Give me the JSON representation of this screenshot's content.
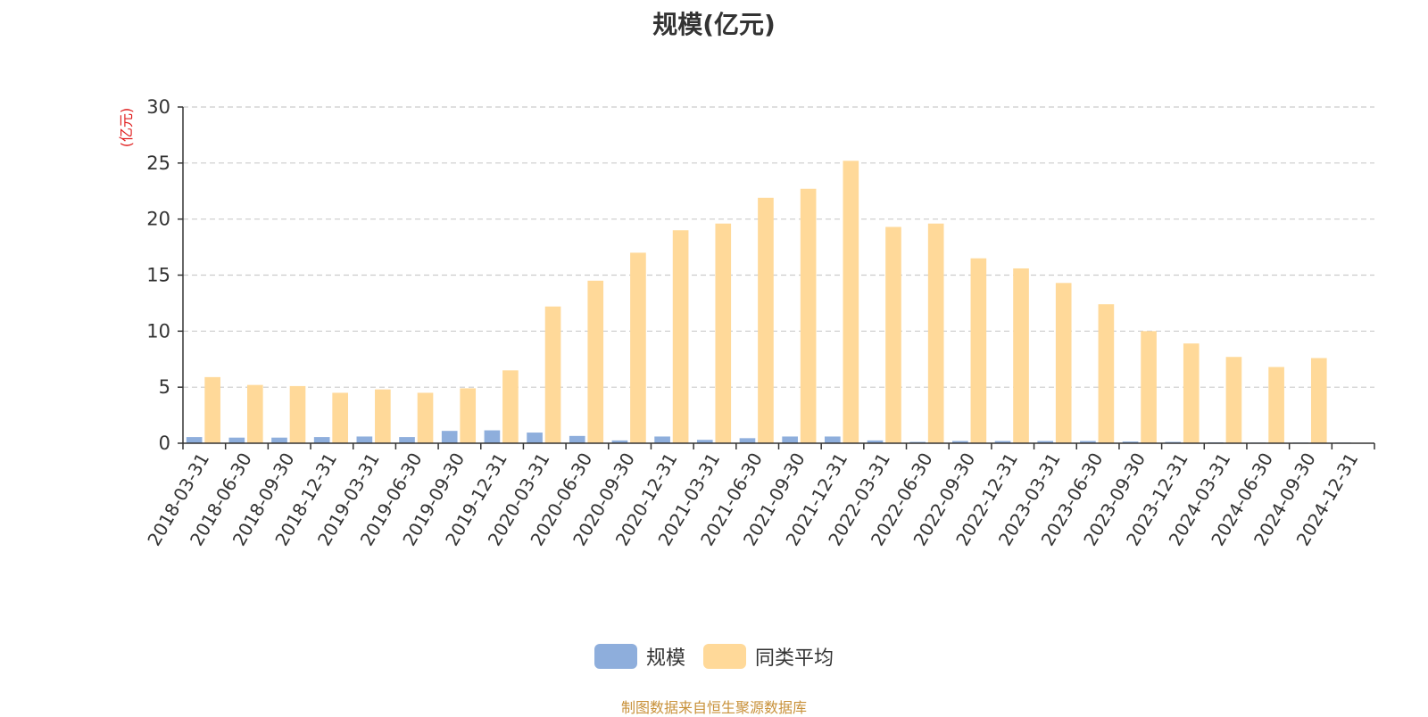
{
  "chart_data": {
    "type": "bar",
    "title": "规模(亿元)",
    "ylabel": "(亿元)",
    "xlabel": "",
    "ylim": [
      0,
      30
    ],
    "yticks": [
      "0",
      "5",
      "10",
      "15",
      "20",
      "25",
      "30"
    ],
    "grid": true,
    "legend_position": "bottom",
    "categories": [
      "2018-03-31",
      "2018-06-30",
      "2018-09-30",
      "2018-12-31",
      "2019-03-31",
      "2019-06-30",
      "2019-09-30",
      "2019-12-31",
      "2020-03-31",
      "2020-06-30",
      "2020-09-30",
      "2020-12-31",
      "2021-03-31",
      "2021-06-30",
      "2021-09-30",
      "2021-12-31",
      "2022-03-31",
      "2022-06-30",
      "2022-09-30",
      "2022-12-31",
      "2023-03-31",
      "2023-06-30",
      "2023-09-30",
      "2023-12-31",
      "2024-03-31",
      "2024-06-30",
      "2024-09-30",
      "2024-12-31"
    ],
    "series": [
      {
        "name": "规模",
        "color": "#8eaedc",
        "values": [
          0.55,
          0.5,
          0.5,
          0.55,
          0.6,
          0.55,
          1.1,
          1.15,
          0.95,
          0.65,
          0.25,
          0.6,
          0.3,
          0.45,
          0.6,
          0.6,
          0.25,
          0.12,
          0.2,
          0.2,
          0.2,
          0.2,
          0.15,
          0.12,
          0.08,
          0.06,
          0.06,
          0.06
        ]
      },
      {
        "name": "同类平均",
        "color": "#ffd999",
        "values": [
          5.9,
          5.2,
          5.1,
          4.5,
          4.8,
          4.5,
          4.9,
          6.5,
          12.2,
          14.5,
          17.0,
          19.0,
          19.6,
          21.9,
          22.7,
          25.2,
          19.3,
          19.6,
          16.5,
          15.6,
          14.3,
          12.4,
          10.0,
          8.9,
          7.7,
          6.8,
          7.6,
          null
        ]
      }
    ]
  },
  "footer": {
    "source": "制图数据来自恒生聚源数据库"
  }
}
